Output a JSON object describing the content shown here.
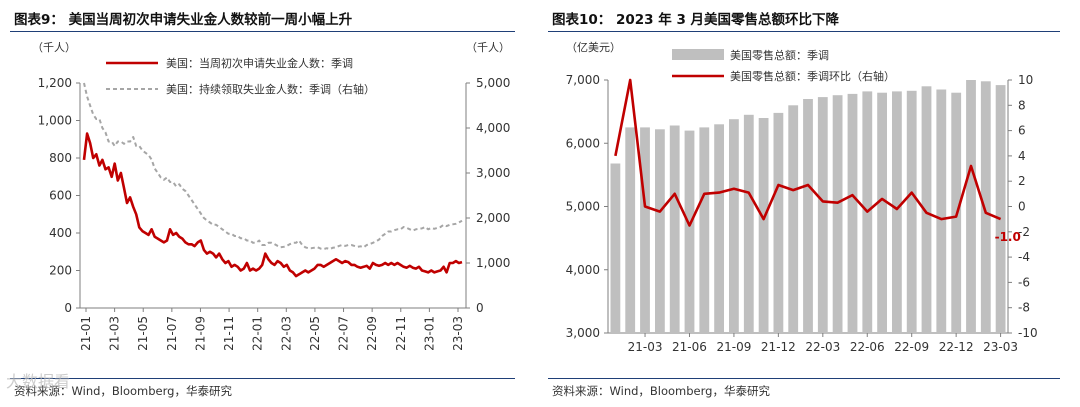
{
  "colors": {
    "red": "#c00000",
    "gray_line": "#a6a6a6",
    "bar": "#bfbfbf",
    "rule": "#1f3f77"
  },
  "left": {
    "title": "图表9：  美国当周初次申请失业金人数较前一周小幅上升",
    "source": "资料来源：Wind，Bloomberg，华泰研究",
    "watermark": "大数据看",
    "chart_data": {
      "type": "line",
      "unit_left": "（千人）",
      "unit_right": "（千人）",
      "y_left_ticks": [
        "1,200",
        "1,000",
        "800",
        "600",
        "400",
        "200",
        "0"
      ],
      "y_right_ticks": [
        "5,000",
        "4,000",
        "3,000",
        "2,000",
        "1,000",
        "0"
      ],
      "ylim_left": [
        0,
        1200
      ],
      "ylim_right": [
        0,
        5000
      ],
      "x_ticks": [
        "21-01",
        "21-03",
        "21-05",
        "21-07",
        "21-09",
        "21-11",
        "22-01",
        "22-03",
        "22-05",
        "22-07",
        "22-09",
        "22-11",
        "23-01",
        "23-03"
      ],
      "series": [
        {
          "name": "美国：当周初次申请失业金人数：季调",
          "axis": "left",
          "style": "solid",
          "values": [
            790,
            930,
            880,
            800,
            820,
            760,
            790,
            740,
            750,
            700,
            770,
            680,
            720,
            640,
            560,
            590,
            540,
            500,
            430,
            410,
            400,
            390,
            420,
            380,
            370,
            360,
            350,
            360,
            420,
            390,
            400,
            380,
            370,
            350,
            340,
            340,
            330,
            350,
            360,
            310,
            290,
            300,
            290,
            270,
            290,
            260,
            240,
            250,
            220,
            230,
            220,
            200,
            210,
            240,
            200,
            210,
            200,
            210,
            230,
            290,
            260,
            240,
            230,
            250,
            240,
            220,
            230,
            200,
            190,
            170,
            180,
            190,
            200,
            190,
            200,
            210,
            230,
            230,
            220,
            230,
            240,
            250,
            260,
            250,
            240,
            250,
            245,
            230,
            230,
            220,
            215,
            220,
            225,
            210,
            240,
            230,
            225,
            230,
            240,
            230,
            240,
            230,
            240,
            230,
            220,
            215,
            225,
            215,
            210,
            220,
            200,
            195,
            190,
            200,
            190,
            195,
            200,
            220,
            190,
            240,
            240,
            250,
            240,
            245
          ]
        },
        {
          "name": "美国：持续领取失业金人数：季调（右轴）",
          "axis": "right",
          "style": "dashed",
          "values": [
            5000,
            4700,
            4500,
            4300,
            4200,
            4200,
            4000,
            3900,
            3700,
            3700,
            3600,
            3700,
            3700,
            3650,
            3700,
            3700,
            3800,
            3600,
            3600,
            3500,
            3450,
            3400,
            3300,
            3100,
            3000,
            2900,
            2850,
            2900,
            2800,
            2800,
            2700,
            2750,
            2650,
            2600,
            2500,
            2400,
            2300,
            2200,
            2100,
            2000,
            1950,
            1900,
            1850,
            1850,
            1800,
            1750,
            1700,
            1650,
            1650,
            1600,
            1600,
            1550,
            1550,
            1500,
            1500,
            1450,
            1450,
            1500,
            1400,
            1400,
            1450,
            1450,
            1420,
            1380,
            1350,
            1360,
            1380,
            1420,
            1450,
            1450,
            1500,
            1400,
            1350,
            1330,
            1330,
            1340,
            1350,
            1320,
            1310,
            1330,
            1310,
            1340,
            1350,
            1380,
            1400,
            1380,
            1400,
            1400,
            1380,
            1360,
            1370,
            1350,
            1400,
            1420,
            1450,
            1480,
            1520,
            1600,
            1650,
            1700,
            1700,
            1730,
            1750,
            1750,
            1800,
            1780,
            1750,
            1720,
            1750,
            1760,
            1770,
            1800,
            1750,
            1780,
            1760,
            1780,
            1800,
            1850,
            1820,
            1850,
            1860,
            1870,
            1900,
            1940
          ]
        }
      ]
    }
  },
  "right": {
    "title": "图表10：  2023 年 3 月美国零售总额环比下降",
    "source": "资料来源：Wind，Bloomberg，华泰研究",
    "chart_data": {
      "type": "bar+line",
      "unit_left": "（亿美元）",
      "y_left_ticks": [
        "7,000",
        "6,000",
        "5,000",
        "4,000",
        "3,000"
      ],
      "y_right_ticks": [
        "10",
        "8",
        "6",
        "4",
        "2",
        "0",
        "-2",
        "-4",
        "-6",
        "-8",
        "-10"
      ],
      "ylim_left": [
        3000,
        7000
      ],
      "ylim_right": [
        -10,
        10
      ],
      "categories": [
        "21-01",
        "21-02",
        "21-03",
        "21-04",
        "21-05",
        "21-06",
        "21-07",
        "21-08",
        "21-09",
        "21-10",
        "21-11",
        "21-12",
        "22-01",
        "22-02",
        "22-03",
        "22-04",
        "22-05",
        "22-06",
        "22-07",
        "22-08",
        "22-09",
        "22-10",
        "22-11",
        "22-12",
        "23-01",
        "23-02",
        "23-03"
      ],
      "x_ticks": [
        "21-03",
        "21-06",
        "21-09",
        "21-12",
        "22-03",
        "22-06",
        "22-09",
        "22-12",
        "23-03"
      ],
      "series": [
        {
          "name": "美国零售总额：季调",
          "type": "bar",
          "axis": "left",
          "values": [
            5680,
            6250,
            6250,
            6220,
            6280,
            6200,
            6250,
            6300,
            6380,
            6450,
            6400,
            6480,
            6600,
            6700,
            6730,
            6760,
            6780,
            6820,
            6800,
            6820,
            6830,
            6900,
            6850,
            6800,
            7000,
            6980,
            6920
          ]
        },
        {
          "name": "美国零售总额：季调环比（右轴）",
          "type": "line",
          "axis": "right",
          "values": [
            4.0,
            10.0,
            0.0,
            -0.4,
            1.0,
            -1.5,
            1.0,
            1.1,
            1.4,
            1.1,
            -1.0,
            1.7,
            1.3,
            1.7,
            0.4,
            0.3,
            0.9,
            -0.4,
            0.6,
            -0.2,
            1.1,
            -0.5,
            -1.0,
            -0.8,
            3.2,
            -0.5,
            -1.0
          ]
        }
      ],
      "annotation": "-1.0"
    }
  }
}
